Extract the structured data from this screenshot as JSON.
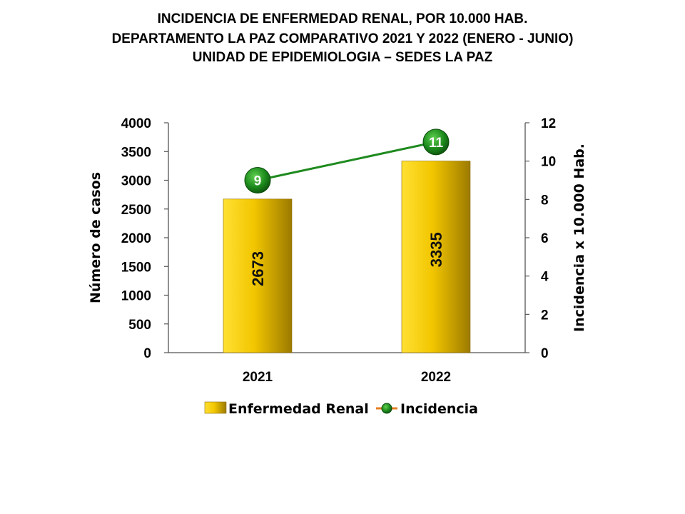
{
  "titles": [
    "INCIDENCIA  DE  ENFERMEDAD  RENAL,  POR 10.000  HAB.",
    "DEPARTAMENTO  LA  PAZ  COMPARATIVO  2021  Y  2022  (ENERO  -  JUNIO)",
    "UNIDAD DE EPIDEMIOLOGIA – SEDES LA PAZ"
  ],
  "chart_data": {
    "type": "bar",
    "categories": [
      "2021",
      "2022"
    ],
    "series": [
      {
        "name": "Enfermedad Renal",
        "type": "bar",
        "axis": "left",
        "values": [
          2673,
          3335
        ],
        "data_labels": [
          "2673",
          "3335"
        ]
      },
      {
        "name": "Incidencia",
        "type": "line",
        "axis": "right",
        "values": [
          9,
          11
        ],
        "data_labels": [
          "9",
          "11"
        ]
      }
    ],
    "ylabel": "Número de casos",
    "y2label": "Incidencia x 10.000 Hab.",
    "xlabel": "",
    "ylim": [
      0,
      4000
    ],
    "y2lim": [
      0,
      12
    ],
    "yticks": [
      0,
      500,
      1000,
      1500,
      2000,
      2500,
      3000,
      3500,
      4000
    ],
    "y2ticks": [
      0,
      2,
      4,
      6,
      8,
      10,
      12
    ],
    "grid": false,
    "legend_position": "bottom",
    "colors": {
      "bar_light": "#ffd91a",
      "bar_mid": "#e6b800",
      "bar_dark": "#a07d00",
      "line": "#1e8a1e",
      "marker": "#1a7a1a",
      "legend_line": "#e67e22"
    }
  }
}
